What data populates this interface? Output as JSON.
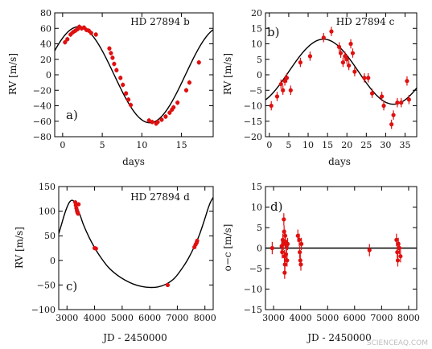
{
  "colors": {
    "points": "#e01010",
    "model": "#000000",
    "frame": "#000000"
  },
  "watermark": "SCIENCEAQ.COM",
  "chart_data": [
    {
      "id": "a",
      "type": "scatter",
      "title": "HD 27894 b",
      "panel_label": "a)",
      "xlabel": "days",
      "ylabel": "RV [m/s]",
      "xlim": [
        -1,
        19
      ],
      "ylim": [
        -80,
        80
      ],
      "xticks": [
        0,
        5,
        10,
        15
      ],
      "yticks": [
        -80,
        -60,
        -40,
        -20,
        0,
        20,
        40,
        60,
        80
      ],
      "model": {
        "kind": "sine",
        "amplitude": 62,
        "period": 18,
        "peak_x": 2,
        "offset": 0
      },
      "points": [
        [
          0.3,
          42,
          3
        ],
        [
          0.6,
          46,
          3
        ],
        [
          1.0,
          52,
          3
        ],
        [
          1.3,
          55,
          3
        ],
        [
          1.6,
          57,
          3
        ],
        [
          1.9,
          59,
          3
        ],
        [
          2.1,
          62,
          3
        ],
        [
          2.4,
          60,
          3
        ],
        [
          2.7,
          61,
          3
        ],
        [
          3.0,
          58,
          3
        ],
        [
          3.3,
          57,
          3
        ],
        [
          3.6,
          54,
          3
        ],
        [
          4.2,
          52,
          3
        ],
        [
          5.9,
          34,
          3
        ],
        [
          6.1,
          28,
          3
        ],
        [
          6.3,
          22,
          3
        ],
        [
          6.5,
          14,
          3
        ],
        [
          6.8,
          6,
          3
        ],
        [
          7.3,
          -4,
          3
        ],
        [
          7.6,
          -13,
          3
        ],
        [
          8.0,
          -24,
          3
        ],
        [
          8.3,
          -32,
          3
        ],
        [
          8.6,
          -39,
          3
        ],
        [
          10.9,
          -59,
          3
        ],
        [
          11.3,
          -61,
          3
        ],
        [
          11.8,
          -63,
          3
        ],
        [
          12.0,
          -61,
          3
        ],
        [
          12.5,
          -58,
          3
        ],
        [
          13.0,
          -54,
          3
        ],
        [
          13.5,
          -49,
          3
        ],
        [
          13.8,
          -45,
          3
        ],
        [
          14.0,
          -42,
          3
        ],
        [
          14.5,
          -36,
          3
        ],
        [
          15.6,
          -20,
          3
        ],
        [
          16.0,
          -10,
          3
        ],
        [
          17.2,
          16,
          3
        ]
      ]
    },
    {
      "id": "b",
      "type": "scatter",
      "title": "HD 27894 c",
      "panel_label": "b)",
      "xlabel": "days",
      "ylabel": "RV [m/s]",
      "xlim": [
        -1,
        38
      ],
      "ylim": [
        -20,
        20
      ],
      "xticks": [
        0,
        5,
        10,
        15,
        20,
        25,
        30,
        35
      ],
      "yticks": [
        -20,
        -15,
        -10,
        -5,
        0,
        5,
        10,
        15,
        20
      ],
      "model": {
        "kind": "sine",
        "amplitude": 10.5,
        "period": 36,
        "peak_x": 14,
        "offset": 1
      },
      "points": [
        [
          0.5,
          -10,
          1.5
        ],
        [
          2.0,
          -7,
          1.5
        ],
        [
          3.0,
          -3,
          1.5
        ],
        [
          3.5,
          -5,
          1.5
        ],
        [
          4.0,
          -2,
          1.5
        ],
        [
          4.5,
          -1,
          1.5
        ],
        [
          5.5,
          -5,
          1.5
        ],
        [
          8.0,
          4,
          1.5
        ],
        [
          10.5,
          6,
          1.5
        ],
        [
          14.0,
          12,
          1.5
        ],
        [
          16.0,
          14,
          1.5
        ],
        [
          18.0,
          9,
          1.5
        ],
        [
          18.4,
          7,
          1.5
        ],
        [
          19.0,
          4,
          1.5
        ],
        [
          19.5,
          6,
          1.5
        ],
        [
          20.0,
          5,
          1.5
        ],
        [
          20.5,
          3,
          1.5
        ],
        [
          21.0,
          10,
          1.5
        ],
        [
          21.5,
          7,
          1.5
        ],
        [
          22.0,
          1,
          1.5
        ],
        [
          24.5,
          -1,
          1.5
        ],
        [
          25.5,
          -1,
          1.5
        ],
        [
          26.5,
          -6,
          1.5
        ],
        [
          29.0,
          -7,
          1.5
        ],
        [
          29.5,
          -10,
          1.5
        ],
        [
          31.5,
          -16,
          1.5
        ],
        [
          32.0,
          -13,
          1.5
        ],
        [
          33.0,
          -9,
          1.5
        ],
        [
          34.0,
          -9,
          1.5
        ],
        [
          35.5,
          -2,
          1.5
        ],
        [
          36.0,
          -8,
          1.5
        ]
      ]
    },
    {
      "id": "c",
      "type": "scatter",
      "title": "HD 27894 d",
      "panel_label": "c)",
      "xlabel": "JD - 2450000",
      "ylabel": "RV [m/s]",
      "xlim": [
        2700,
        8300
      ],
      "ylim": [
        -100,
        150
      ],
      "xticks": [
        3000,
        4000,
        5000,
        6000,
        7000,
        8000
      ],
      "yticks": [
        -100,
        -50,
        0,
        50,
        100,
        150
      ],
      "model": {
        "kind": "curve",
        "x": [
          2700,
          2800,
          2900,
          3000,
          3100,
          3200,
          3300,
          3400,
          3500,
          3600,
          3800,
          4000,
          4200,
          4500,
          4800,
          5100,
          5400,
          5700,
          6000,
          6300,
          6600,
          6900,
          7200,
          7400,
          7600,
          7800,
          8000,
          8100,
          8200,
          8300
        ],
        "y": [
          54,
          73,
          92,
          108,
          119,
          122,
          116,
          103,
          88,
          72,
          47,
          26,
          8,
          -14,
          -29,
          -40,
          -48,
          -53,
          -55,
          -54,
          -48,
          -36,
          -14,
          4,
          26,
          52,
          85,
          103,
          118,
          128
        ]
      },
      "points": [
        [
          3300,
          118,
          4
        ],
        [
          3320,
          112,
          4
        ],
        [
          3340,
          106,
          4
        ],
        [
          3360,
          101,
          4
        ],
        [
          3380,
          97,
          4
        ],
        [
          3400,
          95,
          4
        ],
        [
          3420,
          114,
          4
        ],
        [
          4000,
          25,
          4
        ],
        [
          4050,
          24,
          4
        ],
        [
          6650,
          -50,
          4
        ],
        [
          7620,
          27,
          4
        ],
        [
          7660,
          32,
          4
        ],
        [
          7700,
          36,
          4
        ],
        [
          7720,
          40,
          4
        ]
      ]
    },
    {
      "id": "d",
      "type": "scatter",
      "title": "",
      "panel_label": "d)",
      "xlabel": "JD - 2450000",
      "ylabel": "o−c [m/s]",
      "xlim": [
        2700,
        8300
      ],
      "ylim": [
        -15,
        15
      ],
      "xticks": [
        3000,
        4000,
        5000,
        6000,
        7000,
        8000
      ],
      "yticks": [
        -15,
        -10,
        -5,
        0,
        5,
        10,
        15
      ],
      "model": {
        "kind": "hline",
        "y": 0
      },
      "points": [
        [
          2950,
          0,
          1.5
        ],
        [
          3300,
          0.5,
          1.5
        ],
        [
          3320,
          -1,
          1.5
        ],
        [
          3340,
          2,
          1.5
        ],
        [
          3360,
          1,
          1.5
        ],
        [
          3380,
          7,
          1.5
        ],
        [
          3390,
          4,
          1.5
        ],
        [
          3400,
          -2,
          1.5
        ],
        [
          3410,
          -6,
          1.5
        ],
        [
          3420,
          -4,
          1.5
        ],
        [
          3430,
          3,
          1.5
        ],
        [
          3440,
          1.5,
          1.5
        ],
        [
          3460,
          -1.5,
          1.5
        ],
        [
          3480,
          0.5,
          1.5
        ],
        [
          3500,
          -3,
          1.5
        ],
        [
          3520,
          1,
          1.5
        ],
        [
          3900,
          3,
          1.5
        ],
        [
          3950,
          2,
          1.5
        ],
        [
          3970,
          -1,
          1.5
        ],
        [
          3990,
          -3,
          1.5
        ],
        [
          4010,
          -4,
          1.5
        ],
        [
          4030,
          1,
          1.5
        ],
        [
          6550,
          -0.5,
          1.5
        ],
        [
          7550,
          2,
          1.5
        ],
        [
          7580,
          -1,
          1.5
        ],
        [
          7600,
          -3,
          1.5
        ],
        [
          7620,
          1,
          1.5
        ],
        [
          7660,
          0,
          1.5
        ],
        [
          7700,
          -2,
          1.5
        ]
      ]
    }
  ]
}
